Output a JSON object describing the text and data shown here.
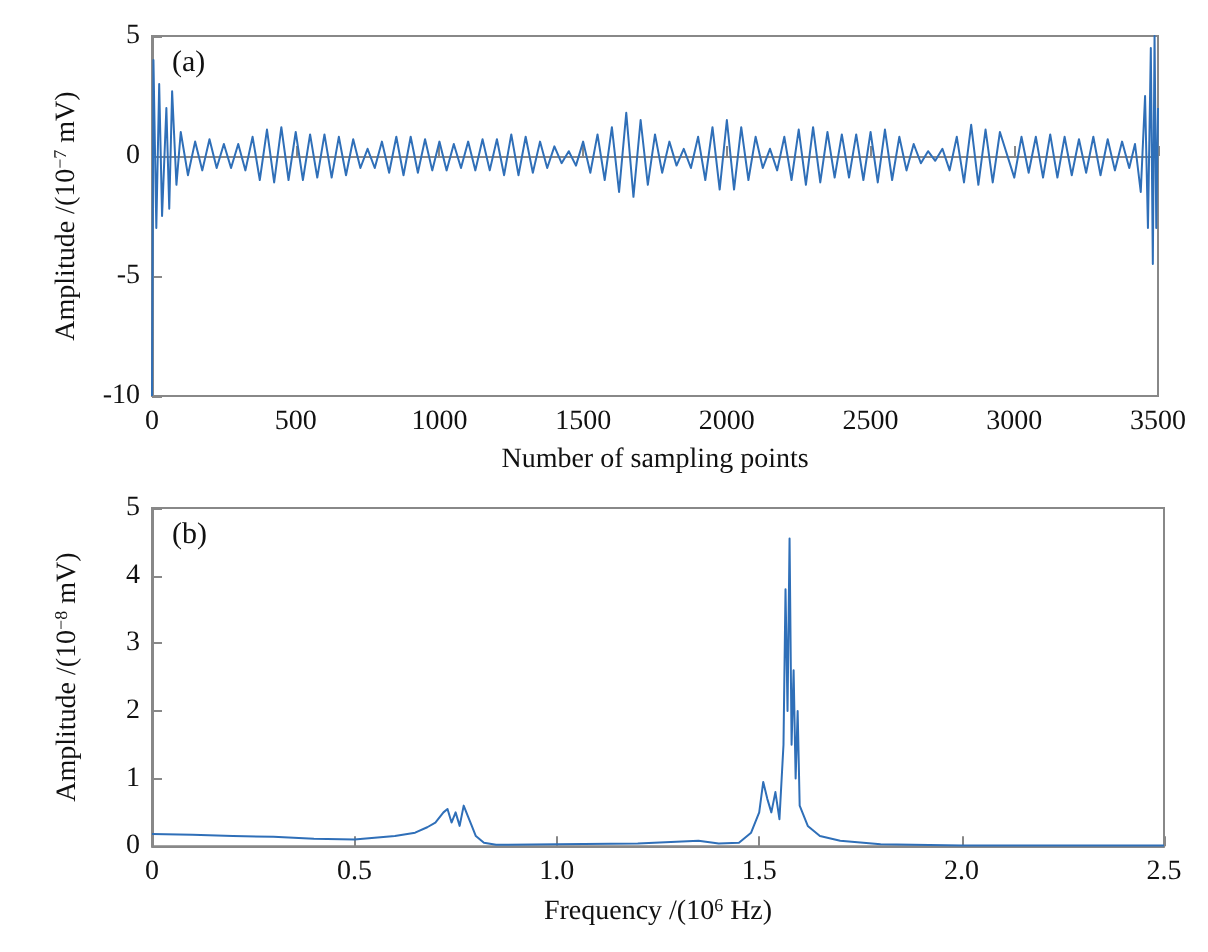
{
  "chart_data": [
    {
      "type": "line",
      "xlabel": "Number of sampling points",
      "ylabel": "Amplitude /(10$^{−7}$ mV)",
      "annotations": [
        "(a)"
      ],
      "marker": "none",
      "xlim": [
        0,
        3500
      ],
      "xticks": [
        0,
        500,
        1000,
        1500,
        2000,
        2500,
        3000,
        3500
      ],
      "ylim": [
        -10,
        5
      ],
      "yticks": [
        -10,
        -5,
        0,
        5
      ],
      "series": [
        {
          "color": "#2f6fb8",
          "x": [
            0,
            5,
            15,
            25,
            35,
            50,
            60,
            70,
            85,
            100,
            125,
            150,
            175,
            200,
            225,
            250,
            275,
            300,
            325,
            350,
            375,
            400,
            425,
            450,
            475,
            500,
            525,
            550,
            575,
            600,
            625,
            650,
            675,
            700,
            725,
            750,
            775,
            800,
            825,
            850,
            875,
            900,
            925,
            950,
            975,
            1000,
            1025,
            1050,
            1075,
            1100,
            1125,
            1150,
            1175,
            1200,
            1225,
            1250,
            1275,
            1300,
            1325,
            1350,
            1375,
            1400,
            1425,
            1450,
            1475,
            1500,
            1525,
            1550,
            1575,
            1600,
            1625,
            1650,
            1675,
            1700,
            1725,
            1750,
            1775,
            1800,
            1825,
            1850,
            1875,
            1900,
            1925,
            1950,
            1975,
            2000,
            2025,
            2050,
            2075,
            2100,
            2125,
            2150,
            2175,
            2200,
            2225,
            2250,
            2275,
            2300,
            2325,
            2350,
            2375,
            2400,
            2425,
            2450,
            2475,
            2500,
            2525,
            2550,
            2575,
            2600,
            2625,
            2650,
            2675,
            2700,
            2725,
            2750,
            2775,
            2800,
            2825,
            2850,
            2875,
            2900,
            2925,
            2950,
            3000,
            3025,
            3050,
            3075,
            3100,
            3125,
            3150,
            3175,
            3200,
            3225,
            3250,
            3275,
            3300,
            3325,
            3350,
            3375,
            3400,
            3420,
            3440,
            3455,
            3465,
            3475,
            3482,
            3488,
            3494,
            3500
          ],
          "values": [
            -10,
            4,
            -3,
            3,
            -2.5,
            2,
            -2.2,
            2.7,
            -1.2,
            1,
            -0.8,
            0.6,
            -0.6,
            0.7,
            -0.5,
            0.5,
            -0.5,
            0.5,
            -0.6,
            0.8,
            -1,
            1.1,
            -1.1,
            1.2,
            -1,
            1,
            -1,
            0.9,
            -0.9,
            0.9,
            -0.9,
            0.8,
            -0.8,
            0.7,
            -0.5,
            0.3,
            -0.5,
            0.6,
            -0.7,
            0.8,
            -0.8,
            0.8,
            -0.7,
            0.7,
            -0.6,
            0.6,
            -0.6,
            0.5,
            -0.5,
            0.6,
            -0.6,
            0.7,
            -0.6,
            0.7,
            -0.8,
            0.9,
            -0.8,
            0.8,
            -0.7,
            0.6,
            -0.5,
            0.4,
            -0.3,
            0.2,
            -0.4,
            0.6,
            -0.7,
            0.9,
            -1,
            1.2,
            -1.5,
            1.8,
            -1.7,
            1.5,
            -1.2,
            0.9,
            -0.7,
            0.6,
            -0.4,
            0.3,
            -0.5,
            0.8,
            -1,
            1.2,
            -1.4,
            1.5,
            -1.4,
            1.2,
            -1,
            0.8,
            -0.5,
            0.3,
            -0.6,
            0.8,
            -1,
            1.1,
            -1.2,
            1.2,
            -1.1,
            1,
            -0.9,
            0.9,
            -0.9,
            0.9,
            -1,
            1,
            -1.1,
            1.1,
            -1,
            0.8,
            -0.6,
            0.5,
            -0.3,
            0.2,
            -0.2,
            0.3,
            -0.6,
            0.8,
            -1.1,
            1.3,
            -1.2,
            1.1,
            -1.1,
            1,
            -0.9,
            0.8,
            -0.7,
            0.8,
            -0.9,
            0.9,
            -0.9,
            0.8,
            -0.8,
            0.7,
            -0.7,
            0.8,
            -0.8,
            0.7,
            -0.6,
            0.6,
            -0.5,
            0.5,
            -1.5,
            2.5,
            -3,
            4.5,
            -4.5,
            5,
            -3,
            2
          ]
        }
      ]
    },
    {
      "type": "line",
      "xlabel": "Frequency /(10$^{6}$ Hz)",
      "ylabel": "Amplitude /(10$^{−8}$ mV)",
      "annotations": [
        "(b)"
      ],
      "marker": "none",
      "xlim": [
        0,
        2.5
      ],
      "xticks": [
        0,
        0.5,
        {
          "value": 1,
          "label": "1.0"
        },
        1.5,
        {
          "value": 2,
          "label": "2.0"
        },
        2.5
      ],
      "ylim": [
        0,
        5
      ],
      "yticks": [
        0,
        1,
        2,
        3,
        4,
        5
      ],
      "series": [
        {
          "color": "#2f6fb8",
          "x": [
            0,
            0.1,
            0.2,
            0.3,
            0.4,
            0.5,
            0.6,
            0.65,
            0.68,
            0.7,
            0.72,
            0.73,
            0.74,
            0.75,
            0.76,
            0.77,
            0.78,
            0.79,
            0.8,
            0.82,
            0.85,
            1.0,
            1.2,
            1.35,
            1.4,
            1.45,
            1.48,
            1.5,
            1.51,
            1.52,
            1.53,
            1.54,
            1.55,
            1.56,
            1.565,
            1.57,
            1.575,
            1.58,
            1.585,
            1.59,
            1.595,
            1.6,
            1.62,
            1.65,
            1.7,
            1.8,
            2.0,
            2.5
          ],
          "values": [
            0.18,
            0.17,
            0.15,
            0.14,
            0.11,
            0.1,
            0.15,
            0.2,
            0.28,
            0.35,
            0.5,
            0.55,
            0.35,
            0.5,
            0.3,
            0.6,
            0.45,
            0.3,
            0.15,
            0.05,
            0.02,
            0.03,
            0.04,
            0.08,
            0.04,
            0.05,
            0.2,
            0.5,
            0.95,
            0.7,
            0.5,
            0.8,
            0.4,
            1.5,
            3.8,
            2,
            4.55,
            1.5,
            2.6,
            1,
            2,
            0.6,
            0.3,
            0.15,
            0.08,
            0.03,
            0.01,
            0.01
          ]
        }
      ]
    }
  ]
}
